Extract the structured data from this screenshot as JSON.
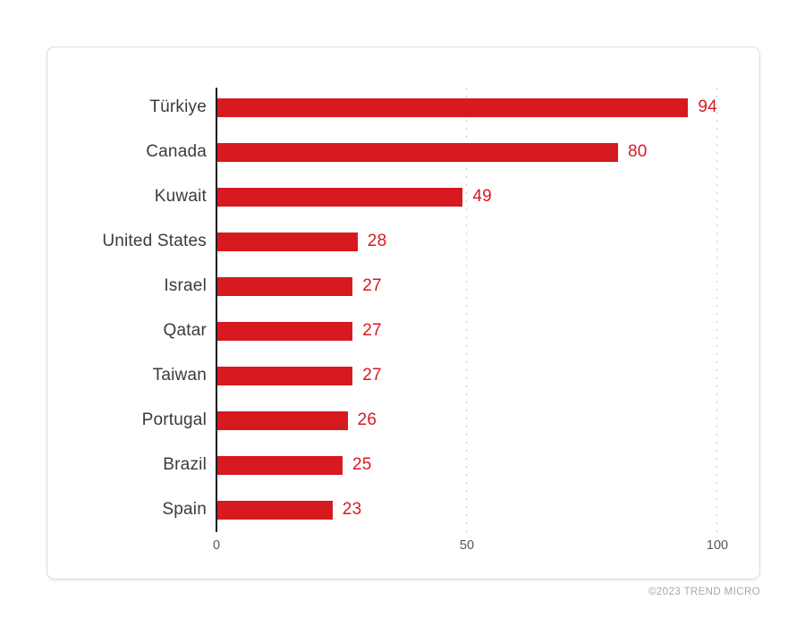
{
  "chart_data": {
    "type": "bar",
    "orientation": "horizontal",
    "title": "",
    "xlabel": "",
    "ylabel": "",
    "categories": [
      "Türkiye",
      "Canada",
      "Kuwait",
      "United States",
      "Israel",
      "Qatar",
      "Taiwan",
      "Portugal",
      "Brazil",
      "Spain"
    ],
    "values": [
      94,
      80,
      49,
      28,
      27,
      27,
      27,
      26,
      25,
      23
    ],
    "xlim": [
      0,
      100
    ],
    "x_ticks": [
      0,
      50,
      100
    ],
    "x_tick_labels": [
      "0",
      "50",
      "100"
    ],
    "grid": "dotted vertical gridlines at 50 and 100",
    "legend": "none",
    "bar_color": "#d71920",
    "value_label_color": "#d71920",
    "category_label_color": "#3b3b3b",
    "axis_color": "#1d1d1f"
  },
  "footer": {
    "credit": "©2023 TREND MICRO"
  }
}
